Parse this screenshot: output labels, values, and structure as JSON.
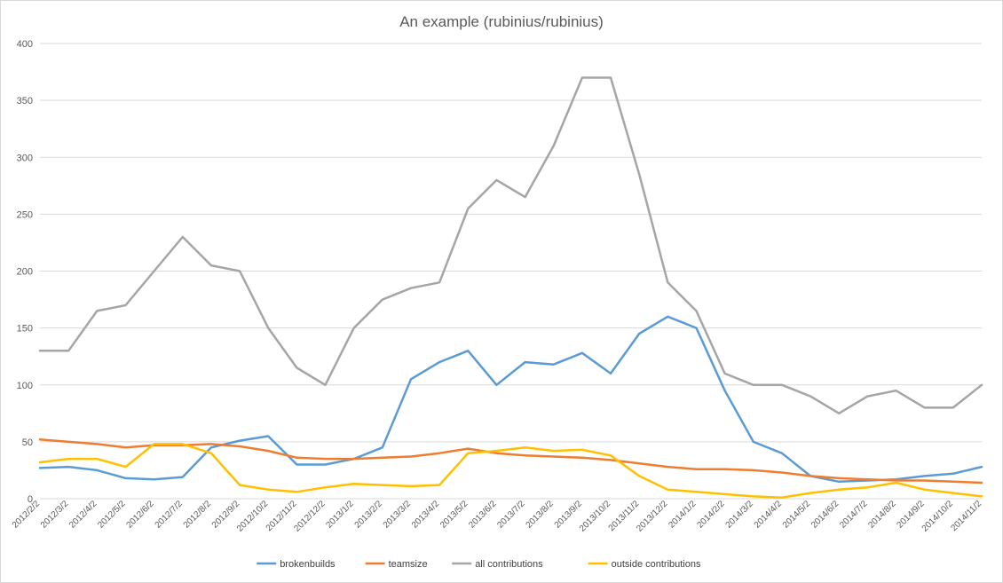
{
  "chart_data": {
    "type": "line",
    "title": "An example (rubinius/rubinius)",
    "xlabel": "",
    "ylabel": "",
    "ylim": [
      0,
      400
    ],
    "yticks": [
      0,
      50,
      100,
      150,
      200,
      250,
      300,
      350,
      400
    ],
    "grid": true,
    "legend": "bottom",
    "x": [
      "2012/2/2",
      "2012/3/2",
      "2012/4/2",
      "2012/5/2",
      "2012/6/2",
      "2012/7/2",
      "2012/8/2",
      "2012/9/2",
      "2012/10/2",
      "2012/11/2",
      "2012/12/2",
      "2013/1/2",
      "2013/2/2",
      "2013/3/2",
      "2013/4/2",
      "2013/5/2",
      "2013/6/2",
      "2013/7/2",
      "2013/8/2",
      "2013/9/2",
      "2013/10/2",
      "2013/11/2",
      "2013/12/2",
      "2014/1/2",
      "2014/2/2",
      "2014/3/2",
      "2014/4/2",
      "2014/5/2",
      "2014/6/2",
      "2014/7/2",
      "2014/8/2",
      "2014/9/2",
      "2014/10/2",
      "2014/11/2"
    ],
    "series": [
      {
        "name": "brokenbuilds",
        "color": "#5b9bd5",
        "values": [
          27,
          28,
          25,
          18,
          17,
          19,
          45,
          51,
          55,
          30,
          30,
          35,
          45,
          105,
          120,
          130,
          100,
          120,
          118,
          128,
          110,
          145,
          160,
          150,
          95,
          50,
          40,
          20,
          15,
          16,
          17,
          20,
          22,
          28
        ]
      },
      {
        "name": "teamsize",
        "color": "#ed7d31",
        "values": [
          52,
          50,
          48,
          45,
          47,
          47,
          48,
          46,
          42,
          36,
          35,
          35,
          36,
          37,
          40,
          44,
          40,
          38,
          37,
          36,
          34,
          31,
          28,
          26,
          26,
          25,
          23,
          20,
          18,
          17,
          16,
          16,
          15,
          14
        ]
      },
      {
        "name": "all contributions",
        "color": "#a5a5a5",
        "values": [
          130,
          130,
          165,
          170,
          200,
          230,
          205,
          200,
          150,
          115,
          100,
          150,
          175,
          185,
          190,
          255,
          280,
          265,
          310,
          370,
          370,
          285,
          190,
          165,
          110,
          100,
          100,
          90,
          75,
          90,
          95,
          80,
          80,
          100
        ]
      },
      {
        "name": "outside contributions",
        "color": "#ffc000",
        "values": [
          32,
          35,
          35,
          28,
          48,
          48,
          40,
          12,
          8,
          6,
          10,
          13,
          12,
          11,
          12,
          40,
          42,
          45,
          42,
          43,
          38,
          20,
          8,
          6,
          4,
          2,
          1,
          5,
          8,
          10,
          14,
          8,
          5,
          2
        ]
      }
    ]
  }
}
